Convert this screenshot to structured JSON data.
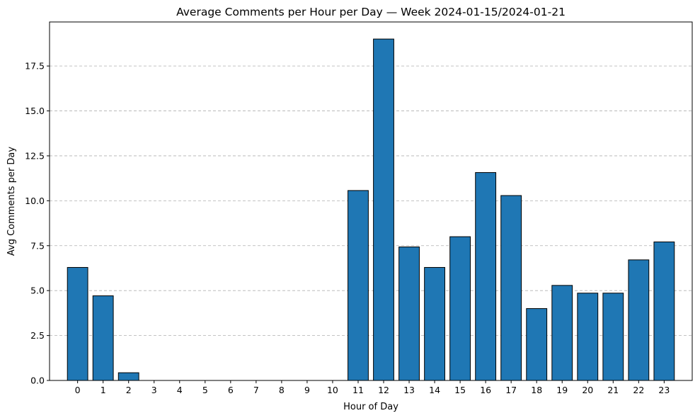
{
  "chart_data": {
    "type": "bar",
    "title": "Average Comments per Hour per Day — Week 2024-01-15/2024-01-21",
    "xlabel": "Hour of Day",
    "ylabel": "Avg Comments per Day",
    "categories": [
      "0",
      "1",
      "2",
      "3",
      "4",
      "5",
      "6",
      "7",
      "8",
      "9",
      "10",
      "11",
      "12",
      "13",
      "14",
      "15",
      "16",
      "17",
      "18",
      "19",
      "20",
      "21",
      "22",
      "23"
    ],
    "values": [
      6.29,
      4.71,
      0.43,
      0,
      0,
      0,
      0,
      0,
      0,
      0,
      0,
      10.57,
      19.0,
      7.43,
      6.29,
      8.0,
      11.57,
      10.29,
      4.0,
      5.29,
      4.86,
      4.86,
      6.71,
      7.71
    ],
    "ylim": [
      0,
      19.95
    ],
    "yticks": [
      "0.0",
      "2.5",
      "5.0",
      "7.5",
      "10.0",
      "12.5",
      "15.0",
      "17.5"
    ],
    "grid": "y",
    "colors": {
      "bar": "#1f77b4",
      "edge": "#000000",
      "grid": "#b0b0b0"
    }
  }
}
